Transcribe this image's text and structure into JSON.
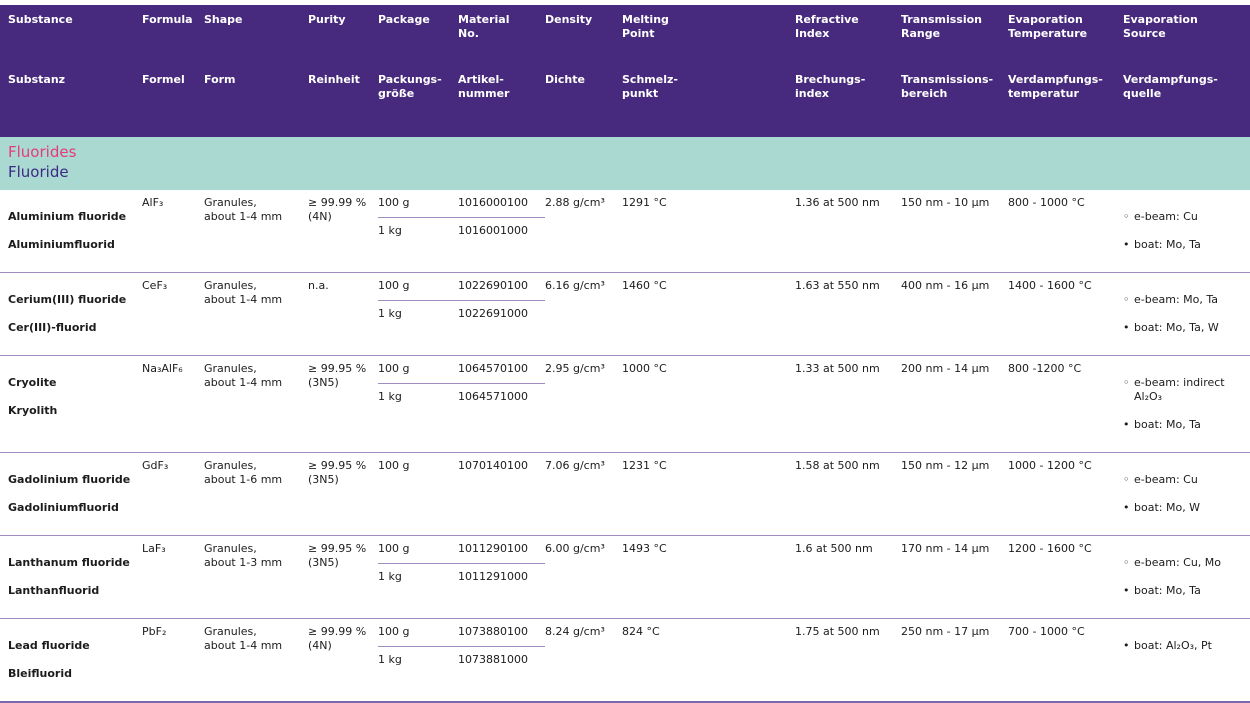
{
  "colors": {
    "header_bg": "#472a7d",
    "section_bg": "#a9d9d0",
    "section_title_en": "#e63a7d",
    "section_title_de": "#3c2a85",
    "row_separator": "#a28cc4",
    "bottom_rule": "#7b68ad"
  },
  "header": {
    "columns": [
      {
        "en": "Substance",
        "de": "Substanz"
      },
      {
        "en": "Formula",
        "de": "Formel"
      },
      {
        "en": "Shape",
        "de": "Form"
      },
      {
        "en": "Purity",
        "de": "Reinheit"
      },
      {
        "en": "Package",
        "de": "Packungs-\ngröße"
      },
      {
        "en": "Material\nNo.",
        "de": "Artikel-\nnummer"
      },
      {
        "en": "Density",
        "de": "Dichte"
      },
      {
        "en": "Melting\nPoint",
        "de": "Schmelz-\npunkt"
      },
      {
        "en": "Refractive\nIndex",
        "de": "Brechungs-\nindex"
      },
      {
        "en": "Transmission\nRange",
        "de": "Transmissions-\nbereich"
      },
      {
        "en": "Evaporation\nTemperature",
        "de": "Verdampfungs-\ntemperatur"
      },
      {
        "en": "Evaporation\nSource",
        "de": "Verdampfungs-\nquelle"
      }
    ]
  },
  "section": {
    "title_en": "Fluorides",
    "title_de": "Fluoride"
  },
  "rows": [
    {
      "name_en": "Aluminium fluoride",
      "name_de": "Aluminiumfluorid",
      "formula": "AlF₃",
      "shape": "Granules,\nabout 1-4 mm",
      "purity": "≥ 99.99 %\n(4N)",
      "packages": [
        {
          "qty": "100 g",
          "no": "1016000100"
        },
        {
          "qty": "1 kg",
          "no": "1016001000"
        }
      ],
      "density": "2.88 g/cm³",
      "melting_point": "1291 °C",
      "refractive_index": "1.36 at 500 nm",
      "transmission_range": "150 nm - 10 µm",
      "evaporation_temperature": "800 - 1000 °C",
      "sources": [
        {
          "bullet": "◦",
          "text": "e-beam: Cu"
        },
        {
          "bullet": "•",
          "text": "boat: Mo, Ta"
        }
      ]
    },
    {
      "name_en": "Cerium(III) fluoride",
      "name_de": "Cer(III)-fluorid",
      "formula": "CeF₃",
      "shape": "Granules,\nabout 1-4 mm",
      "purity": "n.a.",
      "packages": [
        {
          "qty": "100 g",
          "no": "1022690100"
        },
        {
          "qty": "1 kg",
          "no": "1022691000"
        }
      ],
      "density": "6.16 g/cm³",
      "melting_point": "1460 °C",
      "refractive_index": "1.63 at 550 nm",
      "transmission_range": "400 nm - 16 µm",
      "evaporation_temperature": "1400 - 1600 °C",
      "sources": [
        {
          "bullet": "◦",
          "text": "e-beam: Mo, Ta"
        },
        {
          "bullet": "•",
          "text": "boat: Mo, Ta, W"
        }
      ]
    },
    {
      "name_en": "Cryolite",
      "name_de": "Kryolith",
      "formula": "Na₃AlF₆",
      "shape": "Granules,\nabout 1-4 mm",
      "purity": "≥ 99.95 %\n(3N5)",
      "packages": [
        {
          "qty": "100 g",
          "no": "1064570100"
        },
        {
          "qty": "1 kg",
          "no": "1064571000"
        }
      ],
      "density": "2.95 g/cm³",
      "melting_point": "1000 °C",
      "refractive_index": "1.33 at 500 nm",
      "transmission_range": "200 nm - 14 µm",
      "evaporation_temperature": "800 -1200 °C",
      "sources": [
        {
          "bullet": "◦",
          "text": "e-beam: indirect\nAl₂O₃"
        },
        {
          "bullet": "•",
          "text": "boat: Mo, Ta"
        }
      ]
    },
    {
      "name_en": "Gadolinium fluoride",
      "name_de": "Gadoliniumfluorid",
      "formula": "GdF₃",
      "shape": "Granules,\nabout 1-6 mm",
      "purity": "≥ 99.95 %\n(3N5)",
      "packages": [
        {
          "qty": "100 g",
          "no": "1070140100"
        }
      ],
      "density": "7.06 g/cm³",
      "melting_point": "1231 °C",
      "refractive_index": "1.58 at 500 nm",
      "transmission_range": "150 nm - 12 µm",
      "evaporation_temperature": "1000 - 1200 °C",
      "sources": [
        {
          "bullet": "◦",
          "text": "e-beam: Cu"
        },
        {
          "bullet": "•",
          "text": "boat: Mo, W"
        }
      ]
    },
    {
      "name_en": "Lanthanum fluoride",
      "name_de": "Lanthanfluorid",
      "formula": "LaF₃",
      "shape": "Granules,\nabout 1-3 mm",
      "purity": "≥ 99.95 %\n(3N5)",
      "packages": [
        {
          "qty": "100 g",
          "no": "1011290100"
        },
        {
          "qty": "1 kg",
          "no": "1011291000"
        }
      ],
      "density": "6.00 g/cm³",
      "melting_point": "1493 °C",
      "refractive_index": "1.6 at 500 nm",
      "transmission_range": "170 nm - 14 µm",
      "evaporation_temperature": "1200 - 1600 °C",
      "sources": [
        {
          "bullet": "◦",
          "text": "e-beam: Cu, Mo"
        },
        {
          "bullet": "•",
          "text": "boat: Mo, Ta"
        }
      ]
    },
    {
      "name_en": "Lead fluoride",
      "name_de": "Bleifluorid",
      "formula": "PbF₂",
      "shape": "Granules,\nabout 1-4 mm",
      "purity": "≥ 99.99 %\n(4N)",
      "packages": [
        {
          "qty": "100 g",
          "no": "1073880100"
        },
        {
          "qty": "1 kg",
          "no": "1073881000"
        }
      ],
      "density": "8.24 g/cm³",
      "melting_point": "824 °C",
      "refractive_index": "1.75 at 500 nm",
      "transmission_range": "250 nm - 17 µm",
      "evaporation_temperature": "700 - 1000 °C",
      "sources": [
        {
          "bullet": "•",
          "text": "boat: Al₂O₃, Pt"
        }
      ]
    }
  ]
}
